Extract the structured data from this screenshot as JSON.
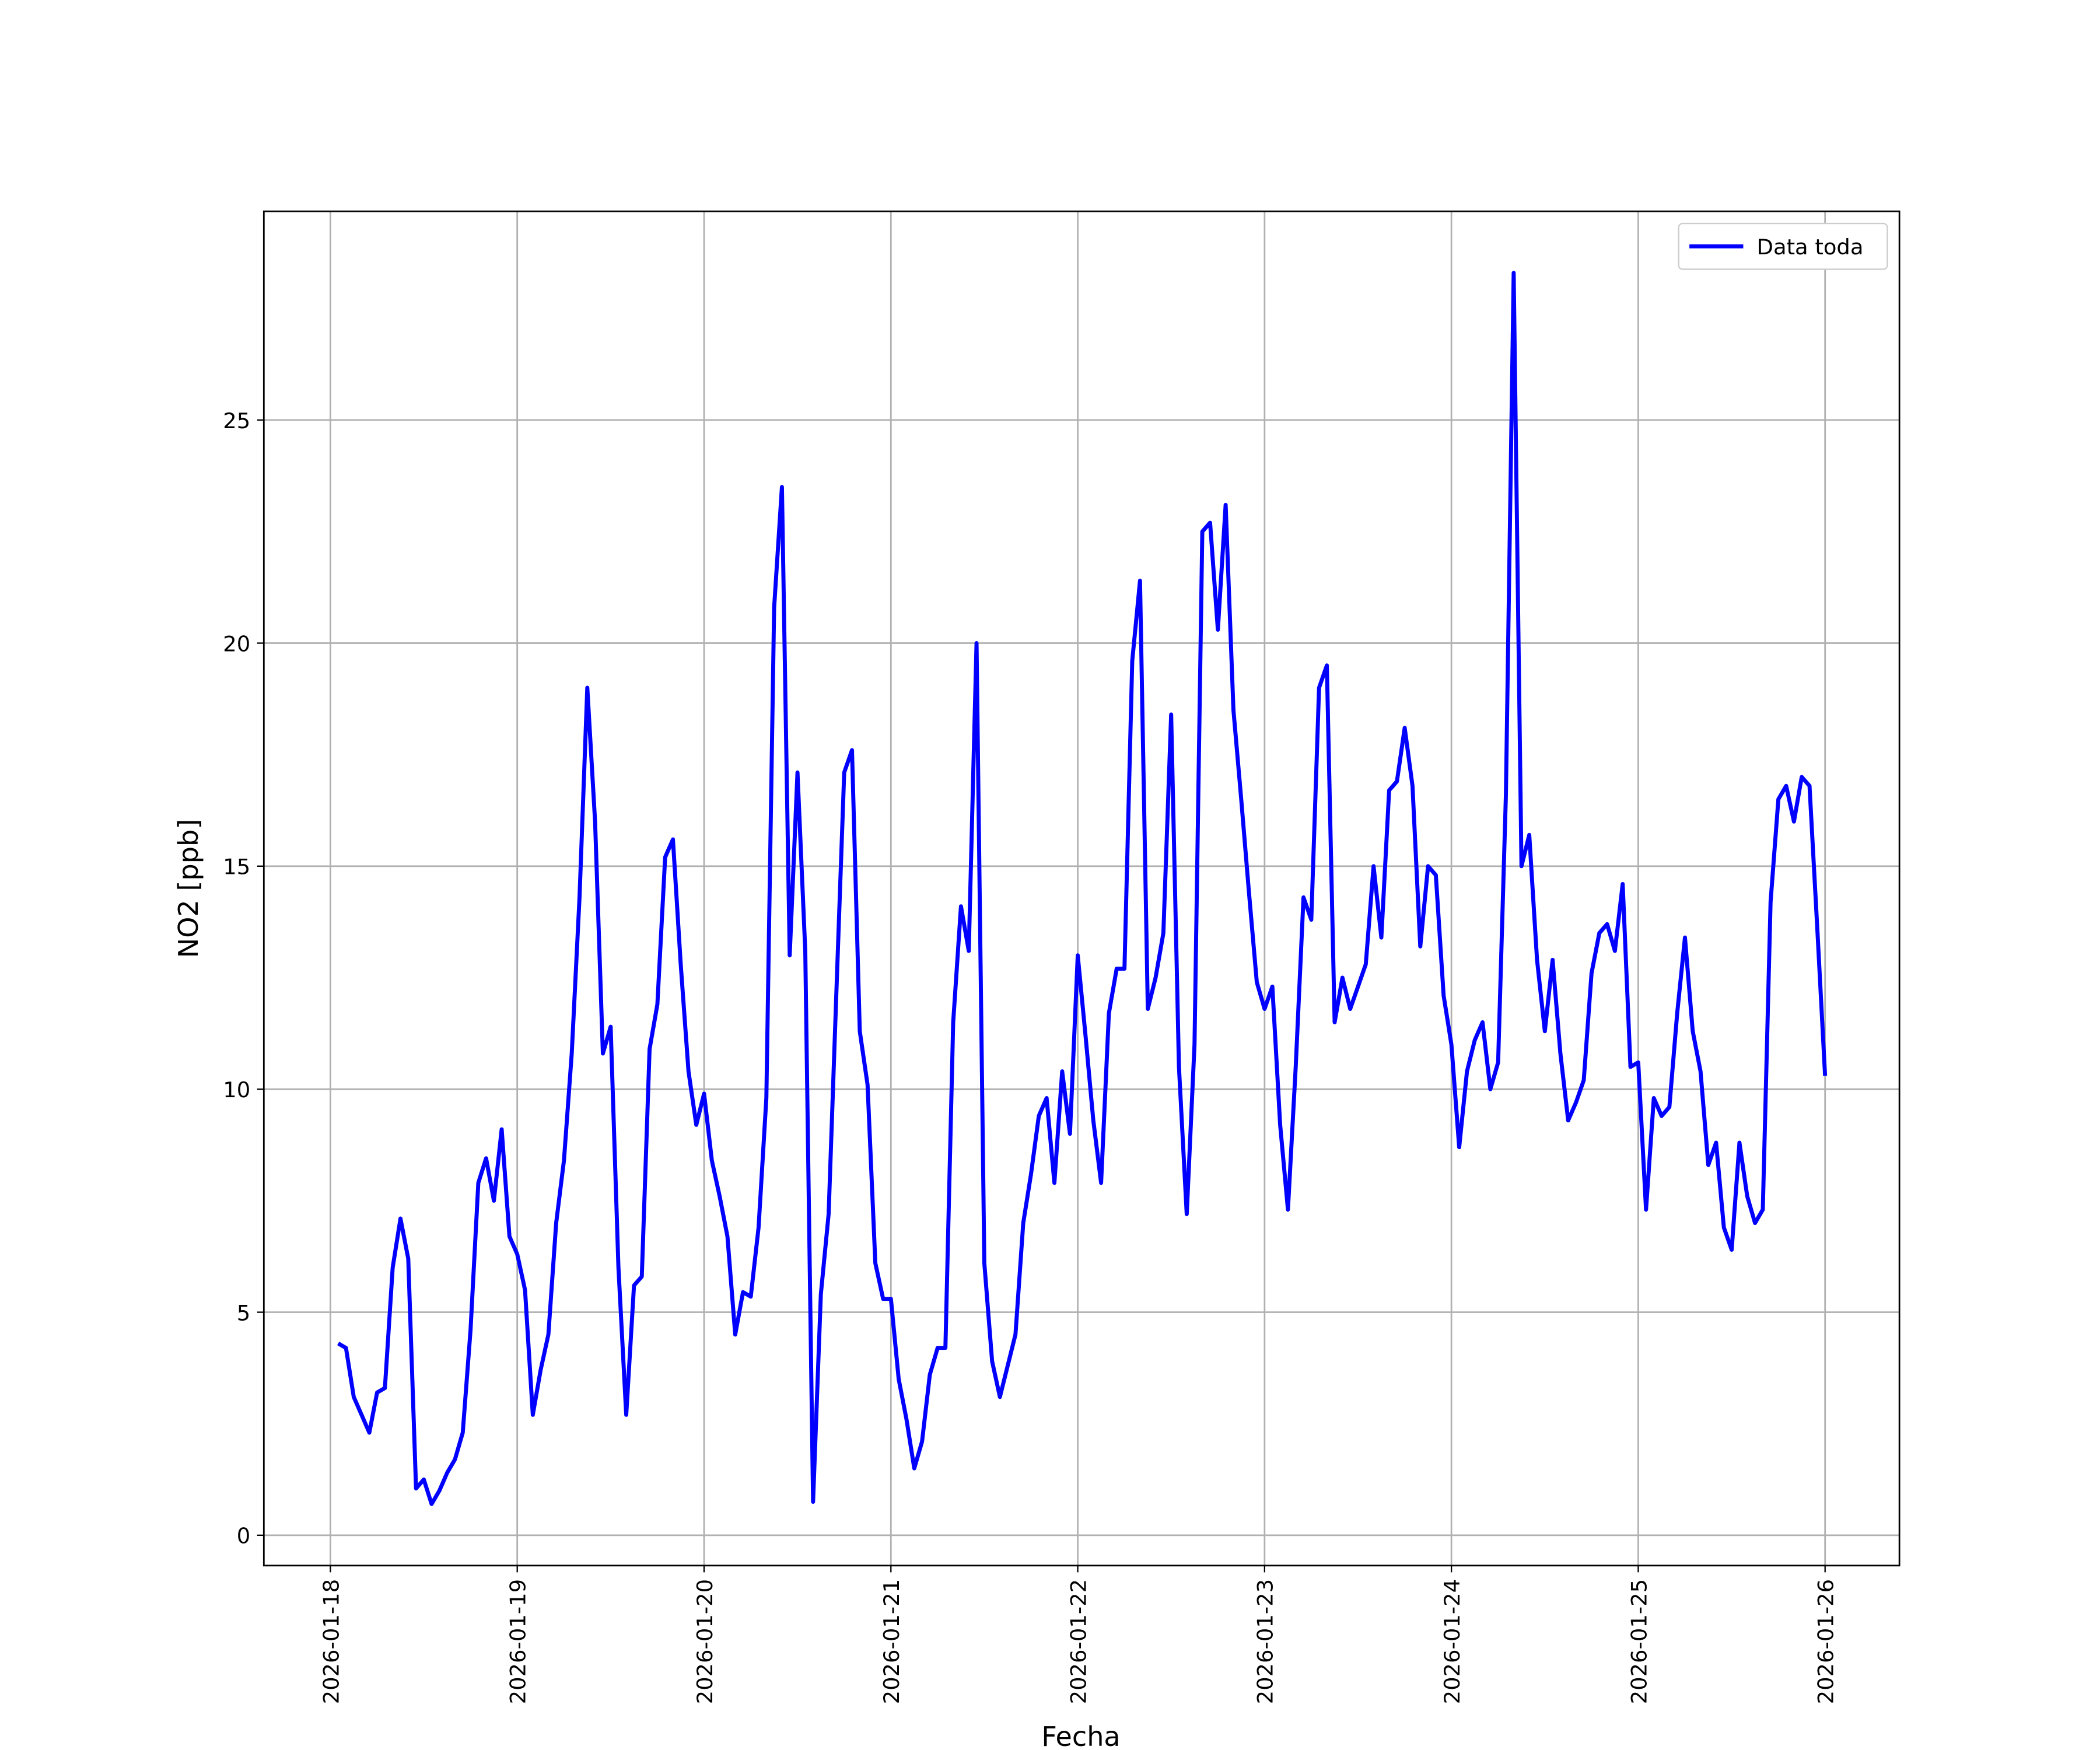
{
  "chart_data": {
    "type": "line",
    "xlabel": "Fecha",
    "ylabel": "NO2 [ppb]",
    "legend": "upper right",
    "grid": true,
    "x": [
      "2026-01-18 01:00",
      "2026-01-18 02:00",
      "2026-01-18 03:00",
      "2026-01-18 04:00",
      "2026-01-18 05:00",
      "2026-01-18 06:00",
      "2026-01-18 07:00",
      "2026-01-18 08:00",
      "2026-01-18 09:00",
      "2026-01-18 10:00",
      "2026-01-18 11:00",
      "2026-01-18 12:00",
      "2026-01-18 13:00",
      "2026-01-18 14:00",
      "2026-01-18 15:00",
      "2026-01-18 16:00",
      "2026-01-18 17:00",
      "2026-01-18 18:00",
      "2026-01-18 19:00",
      "2026-01-18 20:00",
      "2026-01-18 21:00",
      "2026-01-18 22:00",
      "2026-01-18 23:00",
      "2026-01-19 00:00",
      "2026-01-19 01:00",
      "2026-01-19 02:00",
      "2026-01-19 03:00",
      "2026-01-19 04:00",
      "2026-01-19 05:00",
      "2026-01-19 06:00",
      "2026-01-19 07:00",
      "2026-01-19 08:00",
      "2026-01-19 09:00",
      "2026-01-19 10:00",
      "2026-01-19 11:00",
      "2026-01-19 12:00",
      "2026-01-19 13:00",
      "2026-01-19 14:00",
      "2026-01-19 15:00",
      "2026-01-19 16:00",
      "2026-01-19 17:00",
      "2026-01-19 18:00",
      "2026-01-19 19:00",
      "2026-01-19 20:00",
      "2026-01-19 21:00",
      "2026-01-19 22:00",
      "2026-01-19 23:00",
      "2026-01-20 00:00",
      "2026-01-20 01:00",
      "2026-01-20 02:00",
      "2026-01-20 03:00",
      "2026-01-20 04:00",
      "2026-01-20 05:00",
      "2026-01-20 06:00",
      "2026-01-20 07:00",
      "2026-01-20 08:00",
      "2026-01-20 09:00",
      "2026-01-20 10:00",
      "2026-01-20 11:00",
      "2026-01-20 12:00",
      "2026-01-20 13:00",
      "2026-01-20 14:00",
      "2026-01-20 15:00",
      "2026-01-20 16:00",
      "2026-01-20 17:00",
      "2026-01-20 18:00",
      "2026-01-20 19:00",
      "2026-01-20 20:00",
      "2026-01-20 21:00",
      "2026-01-20 22:00",
      "2026-01-20 23:00",
      "2026-01-21 00:00",
      "2026-01-21 01:00",
      "2026-01-21 02:00",
      "2026-01-21 03:00",
      "2026-01-21 04:00",
      "2026-01-21 05:00",
      "2026-01-21 06:00",
      "2026-01-21 07:00",
      "2026-01-21 08:00",
      "2026-01-21 09:00",
      "2026-01-21 10:00",
      "2026-01-21 11:00",
      "2026-01-21 12:00",
      "2026-01-21 13:00",
      "2026-01-21 14:00",
      "2026-01-21 15:00",
      "2026-01-21 16:00",
      "2026-01-21 17:00",
      "2026-01-21 18:00",
      "2026-01-21 19:00",
      "2026-01-21 20:00",
      "2026-01-21 21:00",
      "2026-01-21 22:00",
      "2026-01-21 23:00",
      "2026-01-22 00:00",
      "2026-01-22 01:00",
      "2026-01-22 02:00",
      "2026-01-22 03:00",
      "2026-01-22 04:00",
      "2026-01-22 05:00",
      "2026-01-22 06:00",
      "2026-01-22 07:00",
      "2026-01-22 08:00",
      "2026-01-22 09:00",
      "2026-01-22 10:00",
      "2026-01-22 11:00",
      "2026-01-22 12:00",
      "2026-01-22 13:00",
      "2026-01-22 14:00",
      "2026-01-22 15:00",
      "2026-01-22 16:00",
      "2026-01-22 17:00",
      "2026-01-22 18:00",
      "2026-01-22 19:00",
      "2026-01-22 20:00",
      "2026-01-22 21:00",
      "2026-01-22 22:00",
      "2026-01-22 23:00",
      "2026-01-23 00:00",
      "2026-01-23 01:00",
      "2026-01-23 02:00",
      "2026-01-23 03:00",
      "2026-01-23 04:00",
      "2026-01-23 05:00",
      "2026-01-23 06:00",
      "2026-01-23 07:00",
      "2026-01-23 08:00",
      "2026-01-23 09:00",
      "2026-01-23 10:00",
      "2026-01-23 11:00",
      "2026-01-23 12:00",
      "2026-01-23 13:00",
      "2026-01-23 14:00",
      "2026-01-23 15:00",
      "2026-01-23 16:00",
      "2026-01-23 17:00",
      "2026-01-23 18:00",
      "2026-01-23 19:00",
      "2026-01-23 20:00",
      "2026-01-23 21:00",
      "2026-01-23 22:00",
      "2026-01-23 23:00",
      "2026-01-24 00:00",
      "2026-01-24 01:00",
      "2026-01-24 02:00",
      "2026-01-24 03:00",
      "2026-01-24 04:00",
      "2026-01-24 05:00",
      "2026-01-24 06:00",
      "2026-01-24 07:00",
      "2026-01-24 08:00",
      "2026-01-24 09:00",
      "2026-01-24 10:00",
      "2026-01-24 11:00",
      "2026-01-24 12:00",
      "2026-01-24 13:00",
      "2026-01-24 14:00",
      "2026-01-24 15:00",
      "2026-01-24 16:00",
      "2026-01-24 17:00",
      "2026-01-24 18:00",
      "2026-01-24 19:00",
      "2026-01-24 20:00",
      "2026-01-24 21:00",
      "2026-01-24 22:00",
      "2026-01-24 23:00",
      "2026-01-25 00:00",
      "2026-01-25 01:00",
      "2026-01-25 02:00",
      "2026-01-25 03:00",
      "2026-01-25 04:00",
      "2026-01-25 05:00",
      "2026-01-25 06:00",
      "2026-01-25 07:00",
      "2026-01-25 08:00",
      "2026-01-25 09:00",
      "2026-01-25 10:00",
      "2026-01-25 11:00",
      "2026-01-25 12:00",
      "2026-01-25 13:00",
      "2026-01-25 14:00",
      "2026-01-25 15:00",
      "2026-01-25 16:00",
      "2026-01-25 17:00",
      "2026-01-25 18:00",
      "2026-01-25 19:00",
      "2026-01-25 20:00",
      "2026-01-25 21:00",
      "2026-01-25 22:00",
      "2026-01-25 23:00",
      "2026-01-26 00:00"
    ],
    "series": [
      {
        "name": "Data toda",
        "color": "#0000ff",
        "values": [
          4.3,
          4.2,
          3.1,
          2.7,
          2.3,
          3.2,
          3.3,
          6.0,
          7.1,
          6.2,
          1.05,
          1.25,
          0.7,
          1.0,
          1.4,
          1.7,
          2.3,
          4.6,
          7.9,
          8.45,
          7.5,
          9.1,
          6.7,
          6.3,
          5.5,
          2.7,
          3.7,
          4.5,
          7.0,
          8.4,
          10.8,
          14.3,
          19.0,
          16.0,
          10.8,
          11.4,
          6.0,
          2.7,
          5.6,
          5.8,
          10.9,
          11.9,
          15.2,
          15.6,
          12.8,
          10.4,
          9.2,
          9.9,
          8.4,
          7.6,
          6.7,
          4.5,
          5.45,
          5.35,
          6.9,
          9.8,
          20.8,
          23.5,
          13.0,
          17.1,
          13.1,
          0.75,
          5.4,
          7.2,
          12.2,
          17.1,
          17.6,
          11.3,
          10.1,
          6.1,
          5.3,
          5.3,
          3.5,
          2.6,
          1.5,
          2.1,
          3.6,
          4.2,
          4.2,
          11.5,
          14.1,
          13.1,
          20.0,
          6.1,
          3.9,
          3.1,
          3.8,
          4.5,
          7.0,
          8.1,
          9.4,
          9.8,
          7.9,
          10.4,
          9.0,
          13.0,
          11.2,
          9.3,
          7.9,
          11.7,
          12.7,
          12.7,
          19.6,
          21.4,
          11.8,
          12.5,
          13.5,
          18.4,
          10.5,
          7.2,
          11.0,
          22.5,
          22.7,
          20.3,
          23.1,
          18.5,
          16.5,
          14.4,
          12.4,
          11.8,
          12.3,
          9.2,
          7.3,
          10.5,
          14.3,
          13.8,
          19.0,
          19.5,
          11.5,
          12.5,
          11.8,
          12.3,
          12.8,
          15.0,
          13.4,
          16.7,
          16.9,
          18.1,
          16.8,
          13.2,
          15.0,
          14.8,
          12.1,
          11.0,
          8.7,
          10.4,
          11.1,
          11.5,
          10.0,
          10.6,
          16.6,
          28.3,
          15.0,
          15.7,
          12.9,
          11.3,
          12.9,
          10.8,
          9.3,
          9.7,
          10.2,
          12.6,
          13.5,
          13.7,
          13.1,
          14.6,
          10.5,
          10.6,
          7.3,
          9.8,
          9.4,
          9.6,
          11.7,
          13.4,
          11.3,
          10.4,
          8.3,
          8.8,
          6.9,
          6.4,
          8.8,
          7.6,
          7.0,
          7.3,
          14.2,
          16.5,
          16.8,
          16.0,
          17.0,
          16.8,
          13.6,
          10.3
        ]
      }
    ],
    "xlim": [
      "2026-01-17 15:27",
      "2026-01-26 09:33"
    ],
    "xticks": [
      "2026-01-18",
      "2026-01-19",
      "2026-01-20",
      "2026-01-21",
      "2026-01-22",
      "2026-01-23",
      "2026-01-24",
      "2026-01-25",
      "2026-01-26"
    ],
    "ylim": [
      -0.68,
      29.68
    ],
    "yticks": [
      0,
      5,
      10,
      15,
      20,
      25
    ]
  }
}
